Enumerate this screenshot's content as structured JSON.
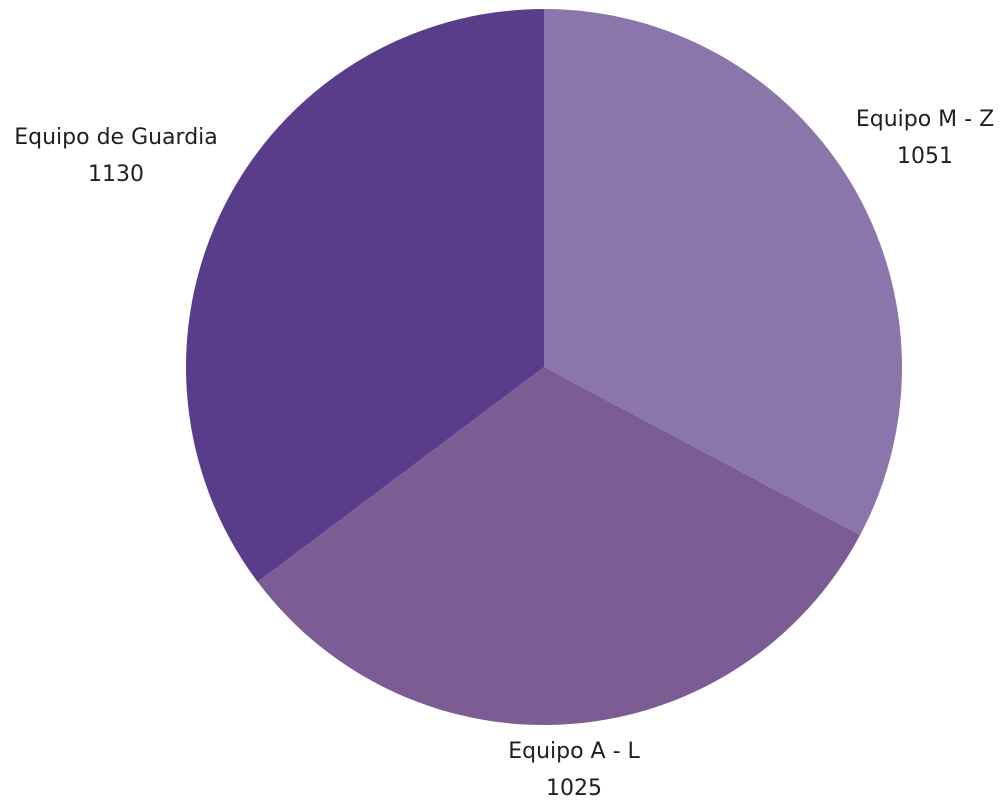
{
  "chart_data": {
    "type": "pie",
    "categories": [
      "Equipo M - Z",
      "Equipo A - L",
      "Equipo de Guardia"
    ],
    "values": [
      1051,
      1025,
      1130
    ],
    "colors": [
      "#8b76ab",
      "#7b5c94",
      "#5a3d8a"
    ],
    "labels": {
      "show_category": true,
      "show_value": true
    },
    "start_angle": "top",
    "direction": "clockwise",
    "legend": "none"
  }
}
